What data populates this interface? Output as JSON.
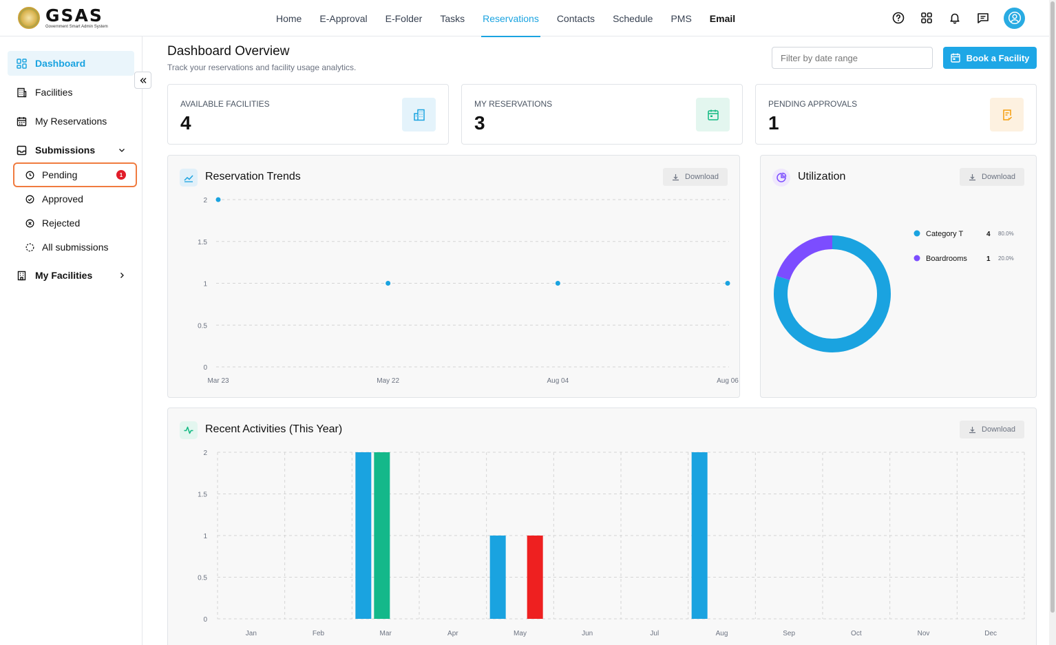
{
  "brand": {
    "title": "GSAS",
    "subtitle": "Government Smart Admin System"
  },
  "nav": {
    "items": [
      {
        "label": "Home"
      },
      {
        "label": "E-Approval"
      },
      {
        "label": "E-Folder"
      },
      {
        "label": "Tasks"
      },
      {
        "label": "Reservations",
        "active": true
      },
      {
        "label": "Contacts"
      },
      {
        "label": "Schedule"
      },
      {
        "label": "PMS"
      },
      {
        "label": "Email",
        "strong": true
      }
    ]
  },
  "header_icons": [
    "help-icon",
    "apps-grid-icon",
    "bell-icon",
    "message-icon",
    "user-icon"
  ],
  "sidebar": {
    "dashboard": "Dashboard",
    "facilities": "Facilities",
    "my_reservations": "My Reservations",
    "submissions": "Submissions",
    "pending": "Pending",
    "pending_badge": "1",
    "approved": "Approved",
    "rejected": "Rejected",
    "all_submissions": "All submissions",
    "my_facilities": "My Facilities"
  },
  "page": {
    "title": "Dashboard Overview",
    "subtitle": "Track your reservations and facility usage analytics.",
    "filter_placeholder": "Filter by date range",
    "book_button": "Book a Facility"
  },
  "stats": {
    "available": {
      "label": "Available Facilities",
      "value": "4",
      "color": "#1aa3e0"
    },
    "reservations": {
      "label": "My Reservations",
      "value": "3",
      "color": "#10b981"
    },
    "pending": {
      "label": "Pending Approvals",
      "value": "1",
      "color": "#f59e0b"
    }
  },
  "download_label": "Download",
  "trends": {
    "title": "Reservation Trends",
    "chart_data": {
      "type": "line",
      "x": [
        "Mar 23",
        "May 22",
        "Aug 04",
        "Aug 06"
      ],
      "values": [
        2,
        1,
        1,
        1
      ],
      "yticks": [
        "0",
        "0.5",
        "1",
        "1.5",
        "2"
      ],
      "ylim": [
        0,
        2
      ],
      "color": "#1aa3e0"
    }
  },
  "utilization": {
    "title": "Utilization",
    "chart_data": {
      "type": "pie",
      "slices": [
        {
          "label": "Category T",
          "value": "4",
          "percent": "80.0%",
          "color": "#1aa3e0",
          "fraction": 0.8
        },
        {
          "label": "Boardrooms",
          "value": "1",
          "percent": "20.0%",
          "color": "#7c4dff",
          "fraction": 0.2
        }
      ]
    }
  },
  "activities": {
    "title": "Recent Activities (This Year)",
    "chart_data": {
      "type": "bar",
      "categories": [
        "Jan",
        "Feb",
        "Mar",
        "Apr",
        "May",
        "Jun",
        "Jul",
        "Aug",
        "Sep",
        "Oct",
        "Nov",
        "Dec"
      ],
      "yticks": [
        "0",
        "0.5",
        "1",
        "1.5",
        "2"
      ],
      "ylim": [
        0,
        2
      ],
      "bars": [
        {
          "month": "Mar",
          "slot": 0,
          "value": 2,
          "color": "#1aa3e0"
        },
        {
          "month": "Mar",
          "slot": 1,
          "value": 2,
          "color": "#14b88a"
        },
        {
          "month": "May",
          "slot": 0,
          "value": 1,
          "color": "#1aa3e0"
        },
        {
          "month": "May",
          "slot": 2,
          "value": 1,
          "color": "#ee2020"
        },
        {
          "month": "Aug",
          "slot": 0,
          "value": 2,
          "color": "#1aa3e0"
        }
      ]
    }
  }
}
